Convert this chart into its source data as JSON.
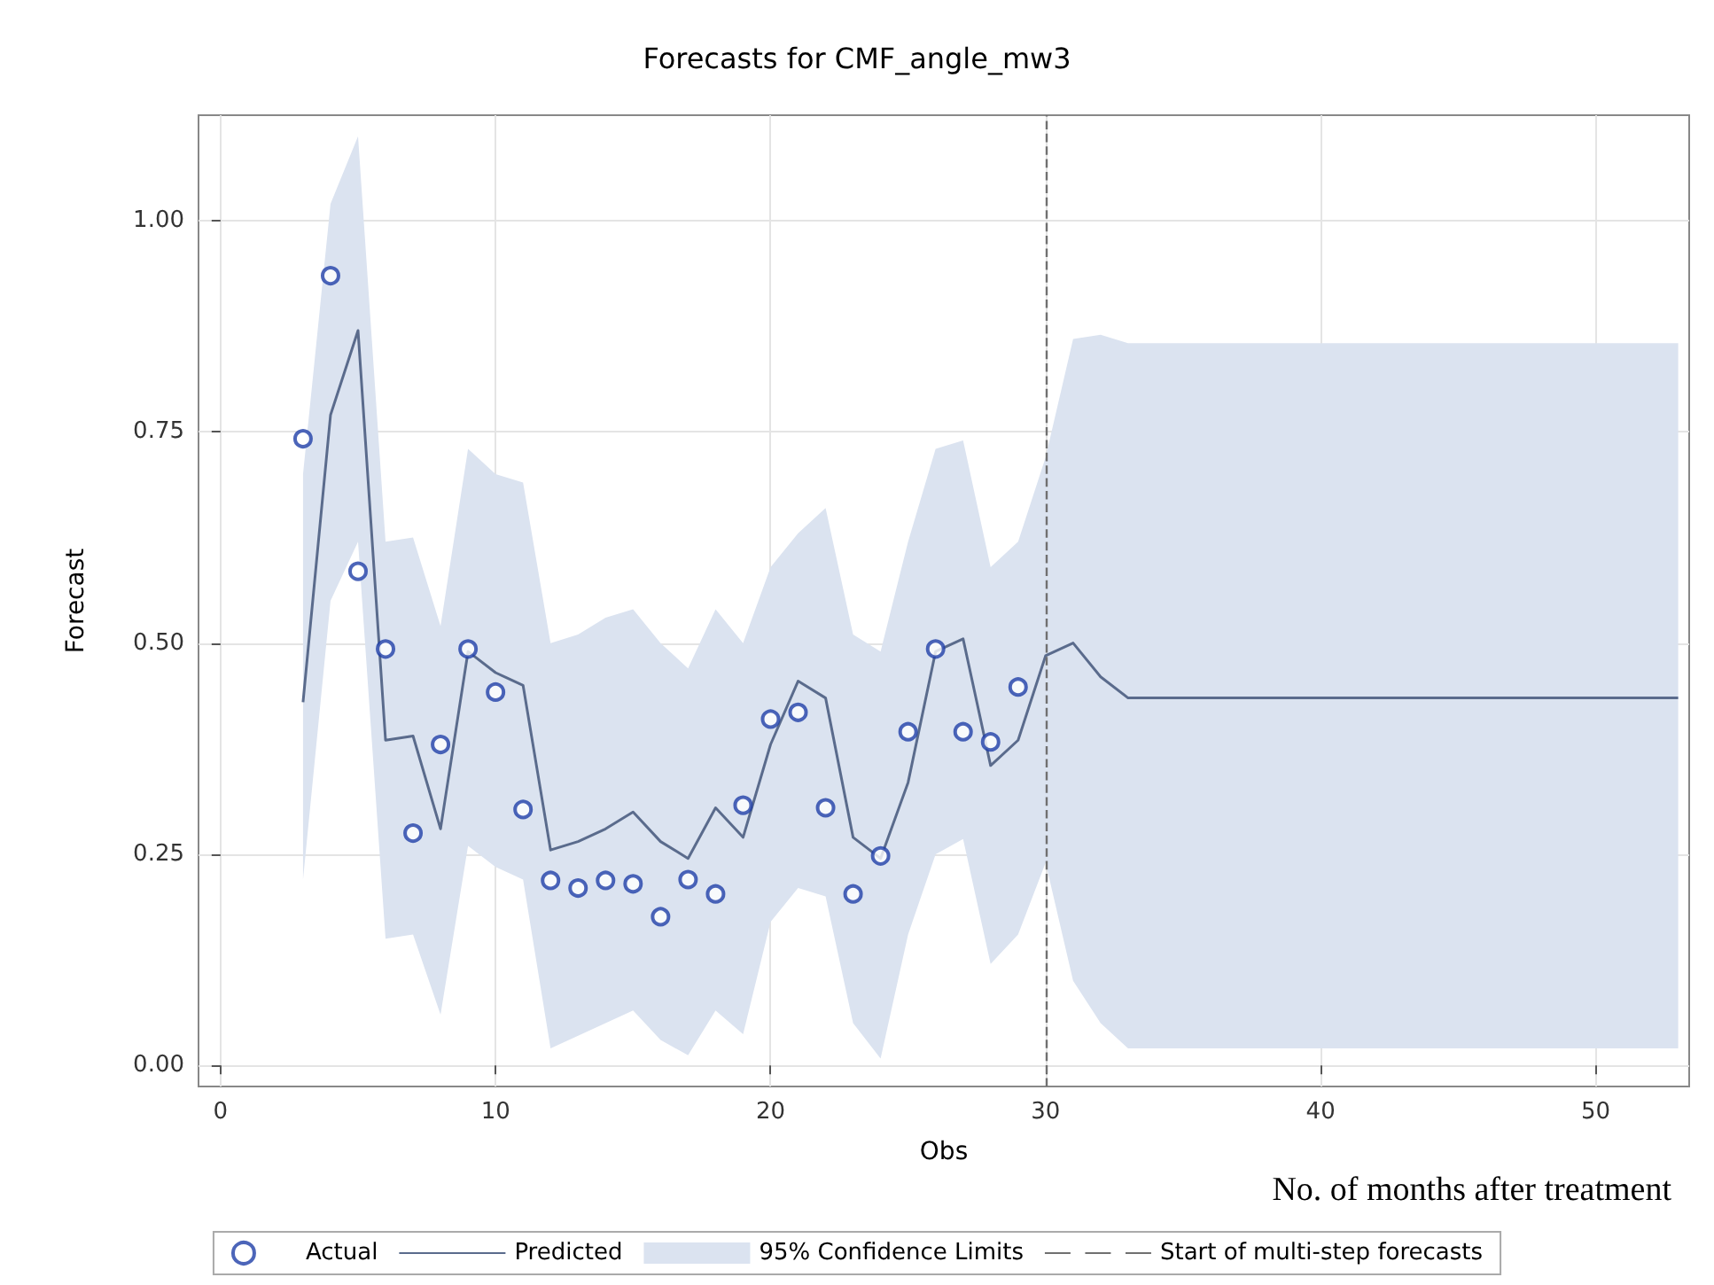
{
  "chart_data": {
    "type": "scatter",
    "title": "Forecasts for CMF_angle_mw3",
    "xlabel": "Obs",
    "ylabel": "Forecast",
    "annotations": [
      "No. of months after treatment",
      "95% Confidence Limits"
    ],
    "xlim": [
      -0.8,
      53.4
    ],
    "xticks": [
      0,
      10,
      20,
      30,
      40,
      50
    ],
    "ylim": [
      -0.025,
      1.125
    ],
    "yticks": [
      {
        "value": 0,
        "label": "0.00"
      },
      {
        "value": 0.25,
        "label": "0.25"
      },
      {
        "value": 0.5,
        "label": "0.50"
      },
      {
        "value": 0.75,
        "label": "0.75"
      },
      {
        "value": 1,
        "label": "1.00"
      }
    ],
    "grid": true,
    "legend": "bottom",
    "series": [
      {
        "name": "Actual",
        "marker": "circle",
        "color": "#1f3fa8",
        "x": [
          3,
          4,
          5,
          6,
          7,
          8,
          9,
          10,
          11,
          12,
          13,
          14,
          15,
          16,
          17,
          18,
          19,
          20,
          21,
          22,
          23,
          24,
          25,
          26,
          27,
          28,
          29
        ],
        "values": [
          0.742,
          0.935,
          0.585,
          0.493,
          0.275,
          0.38,
          0.493,
          0.442,
          0.303,
          0.219,
          0.21,
          0.219,
          0.215,
          0.176,
          0.22,
          0.203,
          0.308,
          0.41,
          0.418,
          0.305,
          0.203,
          0.248,
          0.395,
          0.493,
          0.395,
          0.383,
          0.448
        ]
      },
      {
        "name": "Predicted",
        "type": "line",
        "marker": "none",
        "line_style": "solid",
        "color": "#5a6b8c",
        "x": [
          3,
          4,
          5,
          6,
          7,
          8,
          9,
          10,
          11,
          12,
          13,
          14,
          15,
          16,
          17,
          18,
          19,
          20,
          21,
          22,
          23,
          24,
          25,
          26,
          27,
          28,
          29,
          30,
          31,
          32,
          33,
          34,
          35,
          36,
          37,
          38,
          39,
          40,
          41,
          42,
          43,
          44,
          45,
          46,
          47,
          48,
          49,
          50,
          51,
          52,
          53
        ],
        "values": [
          0.43,
          0.77,
          0.87,
          0.385,
          0.39,
          0.28,
          0.49,
          0.465,
          0.45,
          0.255,
          0.265,
          0.28,
          0.3,
          0.265,
          0.245,
          0.305,
          0.27,
          0.38,
          0.455,
          0.435,
          0.27,
          0.245,
          0.335,
          0.49,
          0.505,
          0.355,
          0.385,
          0.485,
          0.5,
          0.46,
          0.435,
          0.435,
          0.435,
          0.435,
          0.435,
          0.435,
          0.435,
          0.435,
          0.435,
          0.435,
          0.435,
          0.435,
          0.435,
          0.435,
          0.435,
          0.435,
          0.435,
          0.435,
          0.435,
          0.435,
          0.435
        ],
        "lower": [
          0.22,
          0.55,
          0.62,
          0.15,
          0.155,
          0.06,
          0.26,
          0.235,
          0.22,
          0.02,
          0.035,
          0.05,
          0.065,
          0.03,
          0.012,
          0.065,
          0.037,
          0.17,
          0.21,
          0.2,
          0.05,
          0.008,
          0.155,
          0.25,
          0.268,
          0.12,
          0.155,
          0.24,
          0.1,
          0.05,
          0.02,
          0.02,
          0.02,
          0.02,
          0.02,
          0.02,
          0.02,
          0.02,
          0.02,
          0.02,
          0.02,
          0.02,
          0.02,
          0.02,
          0.02,
          0.02,
          0.02,
          0.02,
          0.02,
          0.02,
          0.02
        ],
        "upper": [
          0.7,
          1.02,
          1.1,
          0.62,
          0.625,
          0.52,
          0.73,
          0.7,
          0.69,
          0.5,
          0.51,
          0.53,
          0.54,
          0.5,
          0.47,
          0.54,
          0.5,
          0.59,
          0.63,
          0.66,
          0.51,
          0.49,
          0.62,
          0.73,
          0.74,
          0.59,
          0.62,
          0.72,
          0.86,
          0.865,
          0.855,
          0.855,
          0.855,
          0.855,
          0.855,
          0.855,
          0.855,
          0.855,
          0.855,
          0.855,
          0.855,
          0.855,
          0.855,
          0.855,
          0.855,
          0.855,
          0.855,
          0.855,
          0.855,
          0.855,
          0.855
        ]
      }
    ],
    "ref_lines": [
      {
        "axis": "x",
        "value": 30,
        "label": "Start of multi-step forecasts",
        "color": "#707070",
        "line_style": "dashed"
      }
    ]
  }
}
